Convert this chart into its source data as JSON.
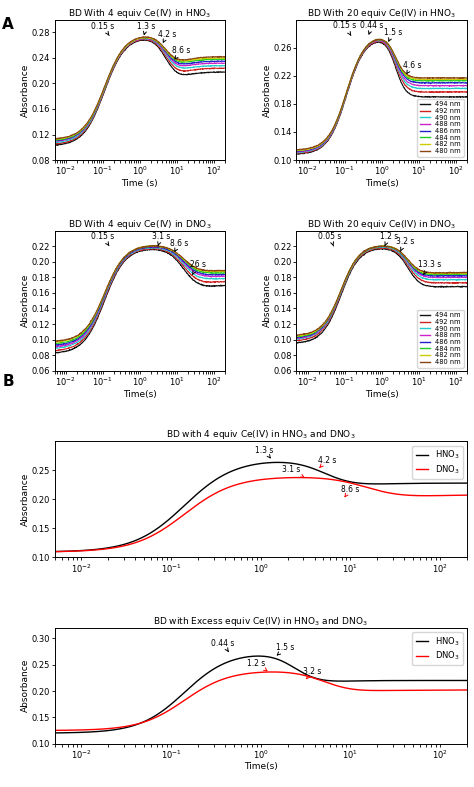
{
  "wavelengths": [
    "494 nm",
    "492 nm",
    "490 nm",
    "488 nm",
    "486 nm",
    "484 nm",
    "482 nm",
    "480 nm"
  ],
  "wl_colors": [
    "#111111",
    "#cc2222",
    "#22cccc",
    "#cc22cc",
    "#2222cc",
    "#22cc22",
    "#cccc00",
    "#8B4513"
  ],
  "panel_titles": [
    "BD With 4 equiv Ce(IV) in HNO$_3$",
    "BD With 20 equiv Ce(IV) in HNO$_3$",
    "BD With 4 equiv Ce(IV) in DNO$_3$",
    "BD With 20 equiv Ce(IV) in DNO$_3$"
  ],
  "panel_B_titles": [
    "BD with 4 equiv Ce(IV) in HNO$_3$ and DNO$_3$",
    "BD with Excess equiv Ce(IV) in HNO$_3$ and DNO$_3$"
  ],
  "ylabel": "Absorbance",
  "legend_labels_B": [
    "HNO$_3$",
    "DNO$_3$"
  ]
}
